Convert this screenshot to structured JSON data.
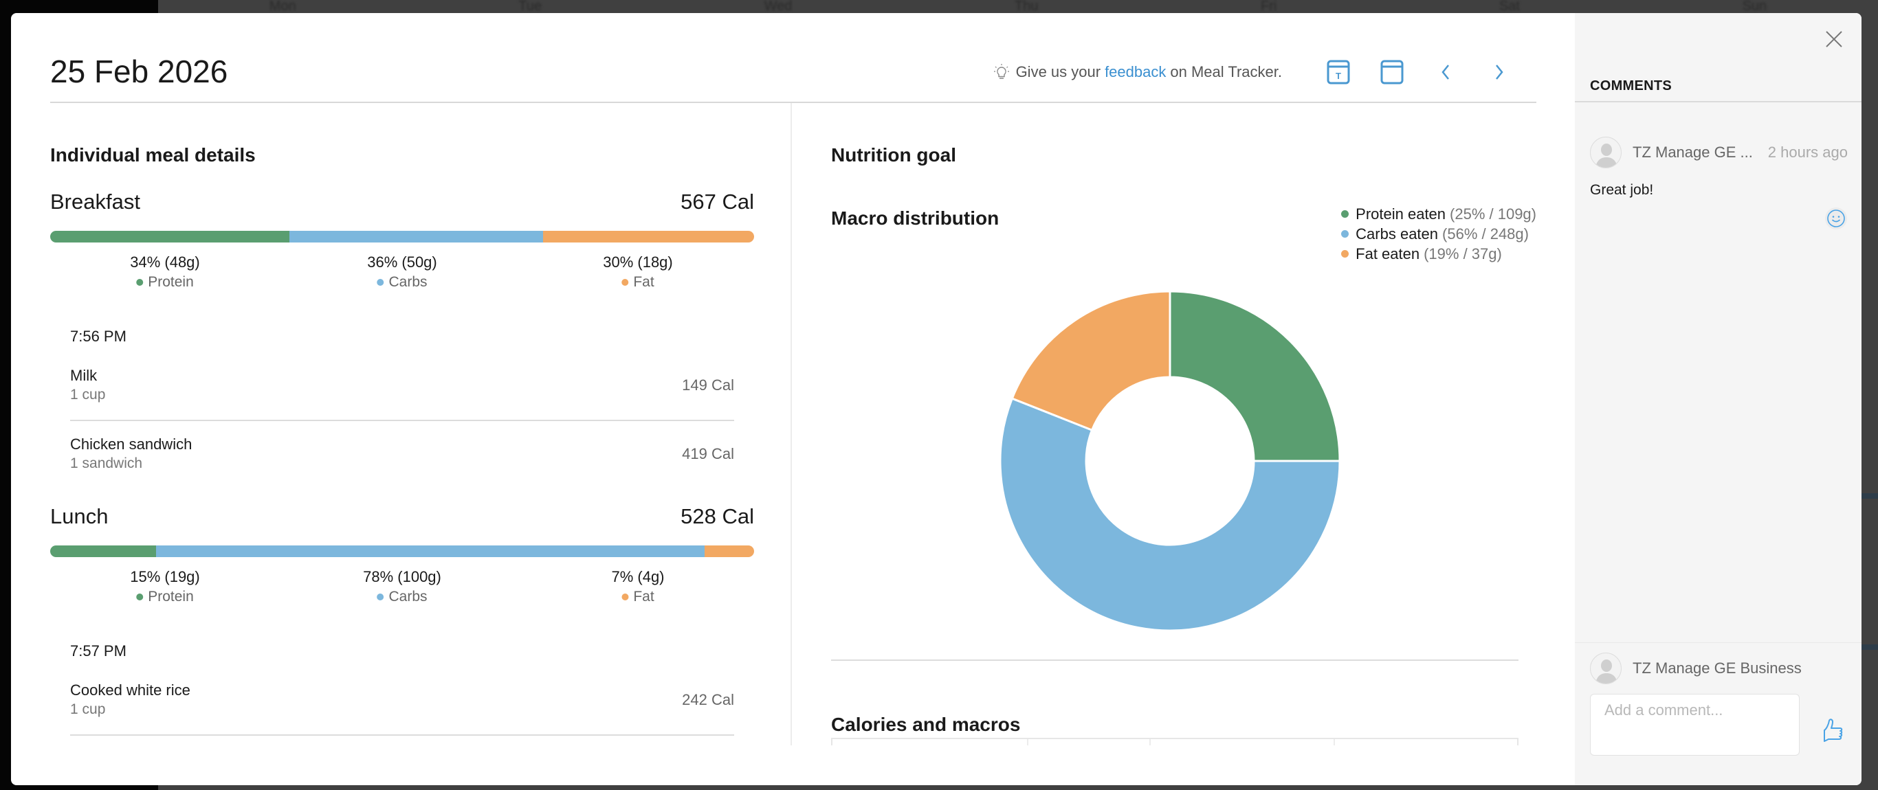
{
  "background": {
    "day_labels": [
      "Mon",
      "Tue",
      "Wed",
      "Thu",
      "Fri",
      "Sat",
      "Sun"
    ]
  },
  "header": {
    "date_title": "25 Feb 2026",
    "feedback_prefix": "Give us your",
    "feedback_link": "feedback",
    "feedback_suffix": "on Meal Tracker.",
    "icons": [
      "lightbulb-icon",
      "calendar-today-icon",
      "calendar-icon",
      "chevron-left-icon",
      "chevron-right-icon"
    ]
  },
  "colors": {
    "protein": "#5a9e70",
    "carbs": "#7cb7dd",
    "fat": "#f2a862",
    "accent": "#3a8fd0"
  },
  "meal_details": {
    "title": "Individual meal details",
    "meals": [
      {
        "name": "Breakfast",
        "calories": "567 Cal",
        "macros": [
          {
            "key": "protein",
            "label": "Protein",
            "pct": 34,
            "text": "34% (48g)"
          },
          {
            "key": "carbs",
            "label": "Carbs",
            "pct": 36,
            "text": "36% (50g)"
          },
          {
            "key": "fat",
            "label": "Fat",
            "pct": 30,
            "text": "30% (18g)"
          }
        ],
        "time": "7:56 PM",
        "foods": [
          {
            "name": "Milk",
            "qty": "1 cup",
            "cal": "149 Cal"
          },
          {
            "name": "Chicken sandwich",
            "qty": "1 sandwich",
            "cal": "419 Cal"
          }
        ]
      },
      {
        "name": "Lunch",
        "calories": "528 Cal",
        "macros": [
          {
            "key": "protein",
            "label": "Protein",
            "pct": 15,
            "text": "15% (19g)"
          },
          {
            "key": "carbs",
            "label": "Carbs",
            "pct": 78,
            "text": "78% (100g)"
          },
          {
            "key": "fat",
            "label": "Fat",
            "pct": 7,
            "text": "7% (4g)"
          }
        ],
        "time": "7:57 PM",
        "foods": [
          {
            "name": "Cooked white rice",
            "qty": "1 cup",
            "cal": "242 Cal"
          }
        ]
      }
    ]
  },
  "nutrition_goal": {
    "title": "Nutrition goal",
    "macro_title": "Macro distribution",
    "calories_macros_title": "Calories and macros"
  },
  "chart_data": {
    "type": "pie",
    "title": "Macro distribution",
    "donut": true,
    "legend_position": "top-right",
    "categories": [
      "Protein eaten",
      "Carbs eaten",
      "Fat eaten"
    ],
    "values": [
      25,
      56,
      19
    ],
    "grams": [
      "109g",
      "248g",
      "37g"
    ],
    "legend_details": [
      "(25% / 109g)",
      "(56% / 248g)",
      "(19% / 37g)"
    ],
    "colors": [
      "#5a9e70",
      "#7cb7dd",
      "#f2a862"
    ]
  },
  "comments": {
    "title": "COMMENTS",
    "items": [
      {
        "author": "TZ Manage GE ...",
        "time": "2 hours ago",
        "text": "Great job!"
      }
    ],
    "composer_author": "TZ Manage GE Business",
    "input_placeholder": "Add a comment...",
    "input_value": ""
  }
}
